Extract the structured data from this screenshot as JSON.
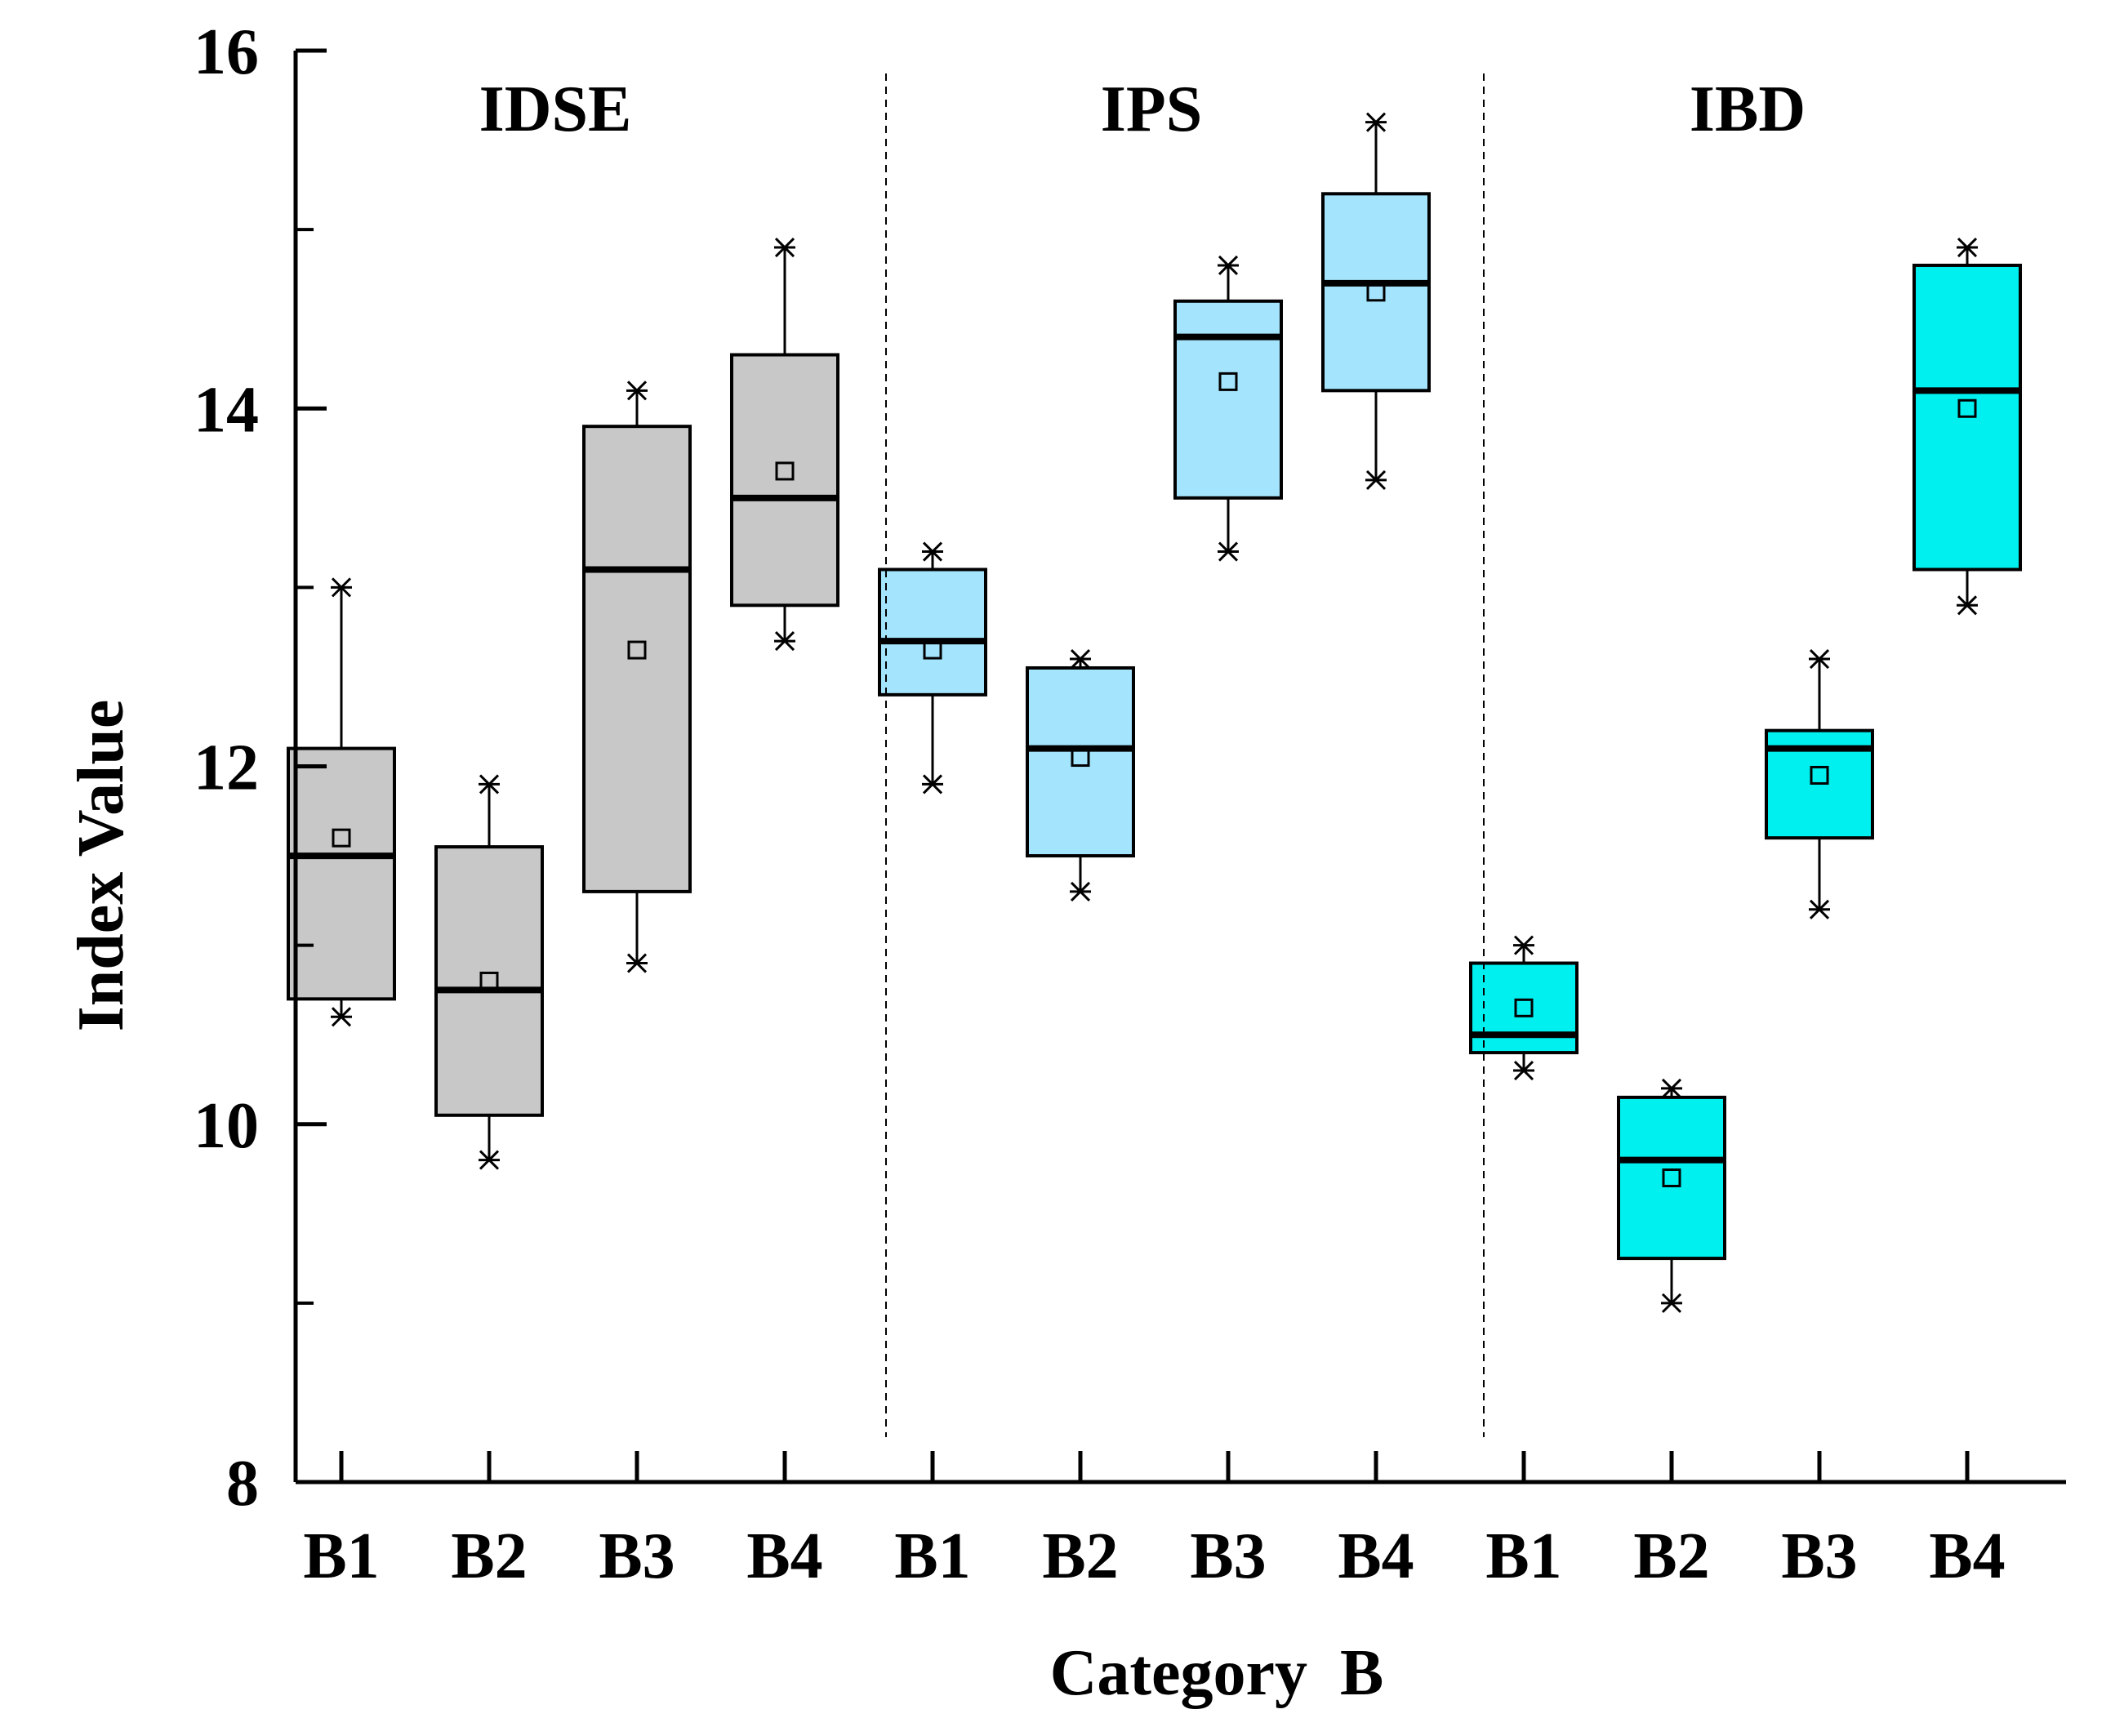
{
  "chart_data": {
    "type": "boxplot",
    "title": "",
    "xlabel": "Category  B",
    "ylabel": "Index Value",
    "ylim": [
      8,
      16
    ],
    "yticks": [
      8,
      10,
      12,
      14,
      16
    ],
    "yticks_minor": [
      9,
      11,
      13,
      15
    ],
    "grid": false,
    "categories": [
      "B1",
      "B2",
      "B3",
      "B4"
    ],
    "groups": [
      {
        "name": "IDSE",
        "color": "#c8c8c8",
        "boxes": [
          {
            "category": "B1",
            "min": 10.6,
            "q1": 10.7,
            "median": 11.5,
            "q3": 12.1,
            "max": 13.0,
            "mean": 11.6
          },
          {
            "category": "B2",
            "min": 9.8,
            "q1": 10.05,
            "median": 10.75,
            "q3": 11.55,
            "max": 11.9,
            "mean": 10.8
          },
          {
            "category": "B3",
            "min": 10.9,
            "q1": 11.3,
            "median": 13.1,
            "q3": 13.9,
            "max": 14.1,
            "mean": 12.65
          },
          {
            "category": "B4",
            "min": 12.7,
            "q1": 12.9,
            "median": 13.5,
            "q3": 14.3,
            "max": 14.9,
            "mean": 13.65
          }
        ]
      },
      {
        "name": "IPS",
        "color": "#a4e4fc",
        "boxes": [
          {
            "category": "B1",
            "min": 11.9,
            "q1": 12.4,
            "median": 12.7,
            "q3": 13.1,
            "max": 13.2,
            "mean": 12.65
          },
          {
            "category": "B2",
            "min": 11.3,
            "q1": 11.5,
            "median": 12.1,
            "q3": 12.55,
            "max": 12.6,
            "mean": 12.05
          },
          {
            "category": "B3",
            "min": 13.2,
            "q1": 13.5,
            "median": 14.4,
            "q3": 14.6,
            "max": 14.8,
            "mean": 14.15
          },
          {
            "category": "B4",
            "min": 13.6,
            "q1": 14.1,
            "median": 14.7,
            "q3": 15.2,
            "max": 15.6,
            "mean": 14.65
          }
        ]
      },
      {
        "name": "IBD",
        "color": "#00f0f0",
        "boxes": [
          {
            "category": "B1",
            "min": 10.3,
            "q1": 10.4,
            "median": 10.5,
            "q3": 10.9,
            "max": 11.0,
            "mean": 10.65
          },
          {
            "category": "B2",
            "min": 9.0,
            "q1": 9.25,
            "median": 9.8,
            "q3": 10.15,
            "max": 10.2,
            "mean": 9.7
          },
          {
            "category": "B3",
            "min": 11.2,
            "q1": 11.6,
            "median": 12.1,
            "q3": 12.2,
            "max": 12.6,
            "mean": 11.95
          },
          {
            "category": "B4",
            "min": 12.9,
            "q1": 13.1,
            "median": 14.1,
            "q3": 14.8,
            "max": 14.9,
            "mean": 14.0
          }
        ]
      }
    ]
  }
}
